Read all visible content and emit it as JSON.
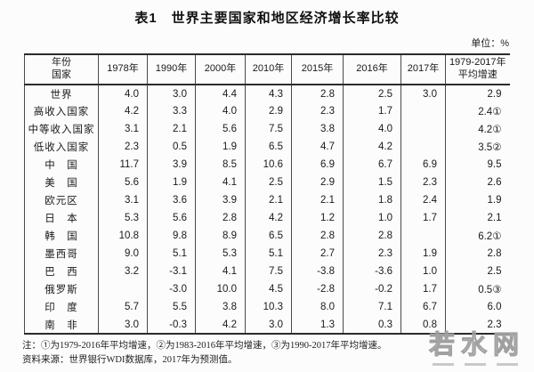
{
  "page": {
    "title": "表1　世界主要国家和地区经济增长率比较",
    "unit_label": "单位：%"
  },
  "chart_data": {
    "type": "table",
    "title": "表1 世界主要国家和地区经济增长率比较",
    "unit": "%",
    "corner_header": {
      "top": "年份",
      "bottom": "国家"
    },
    "columns": [
      "1978年",
      "1990年",
      "2000年",
      "2010年",
      "2015年",
      "2016年",
      "2017年",
      "1979-2017年平均增速"
    ],
    "rows": [
      {
        "name": "世界",
        "values": [
          "4.0",
          "3.0",
          "4.4",
          "4.3",
          "2.8",
          "2.5",
          "3.0",
          "2.9"
        ]
      },
      {
        "name": "高收入国家",
        "values": [
          "4.2",
          "3.3",
          "4.0",
          "2.9",
          "2.3",
          "1.7",
          "",
          "2.4①"
        ]
      },
      {
        "name": "中等收入国家",
        "values": [
          "3.1",
          "2.1",
          "5.6",
          "7.5",
          "3.8",
          "4.0",
          "",
          "4.2①"
        ]
      },
      {
        "name": "低收入国家",
        "values": [
          "2.3",
          "0.5",
          "1.9",
          "6.5",
          "4.7",
          "4.2",
          "",
          "3.5②"
        ]
      },
      {
        "name": "中　国",
        "values": [
          "11.7",
          "3.9",
          "8.5",
          "10.6",
          "6.9",
          "6.7",
          "6.9",
          "9.5"
        ]
      },
      {
        "name": "美　国",
        "values": [
          "5.6",
          "1.9",
          "4.1",
          "2.5",
          "2.9",
          "1.5",
          "2.3",
          "2.6"
        ]
      },
      {
        "name": "欧元区",
        "values": [
          "3.1",
          "3.6",
          "3.9",
          "2.1",
          "2.1",
          "1.8",
          "2.4",
          "1.9"
        ]
      },
      {
        "name": "日　本",
        "values": [
          "5.3",
          "5.6",
          "2.8",
          "4.2",
          "1.2",
          "1.0",
          "1.7",
          "2.1"
        ]
      },
      {
        "name": "韩　国",
        "values": [
          "10.8",
          "9.8",
          "8.9",
          "6.5",
          "2.8",
          "2.8",
          "",
          "6.2①"
        ]
      },
      {
        "name": "墨西哥",
        "values": [
          "9.0",
          "5.1",
          "5.3",
          "5.1",
          "2.7",
          "2.3",
          "1.9",
          "2.8"
        ]
      },
      {
        "name": "巴　西",
        "values": [
          "3.2",
          "-3.1",
          "4.1",
          "7.5",
          "-3.8",
          "-3.6",
          "1.0",
          "2.5"
        ]
      },
      {
        "name": "俄罗斯",
        "values": [
          "",
          "-3.0",
          "10.0",
          "4.5",
          "-2.8",
          "-0.2",
          "1.7",
          "0.5③"
        ]
      },
      {
        "name": "印　度",
        "values": [
          "5.7",
          "5.5",
          "3.8",
          "10.3",
          "8.0",
          "7.1",
          "6.7",
          "6.0"
        ]
      },
      {
        "name": "南　非",
        "values": [
          "3.0",
          "-0.3",
          "4.2",
          "3.0",
          "1.3",
          "0.3",
          "0.8",
          "2.3"
        ]
      }
    ],
    "layout": {
      "grid": "vertical-rules-only",
      "header_rule": "thick",
      "outer_rules": "top-bottom-thick"
    }
  },
  "footnotes": {
    "note": "注：①为1979-2016年平均增速，②为1983-2016年平均增速，③为1990-2017年平均增速。",
    "source": "资料来源：世界银行WDI数据库，2017年为预测值。"
  },
  "watermark": {
    "text": "若水网"
  }
}
